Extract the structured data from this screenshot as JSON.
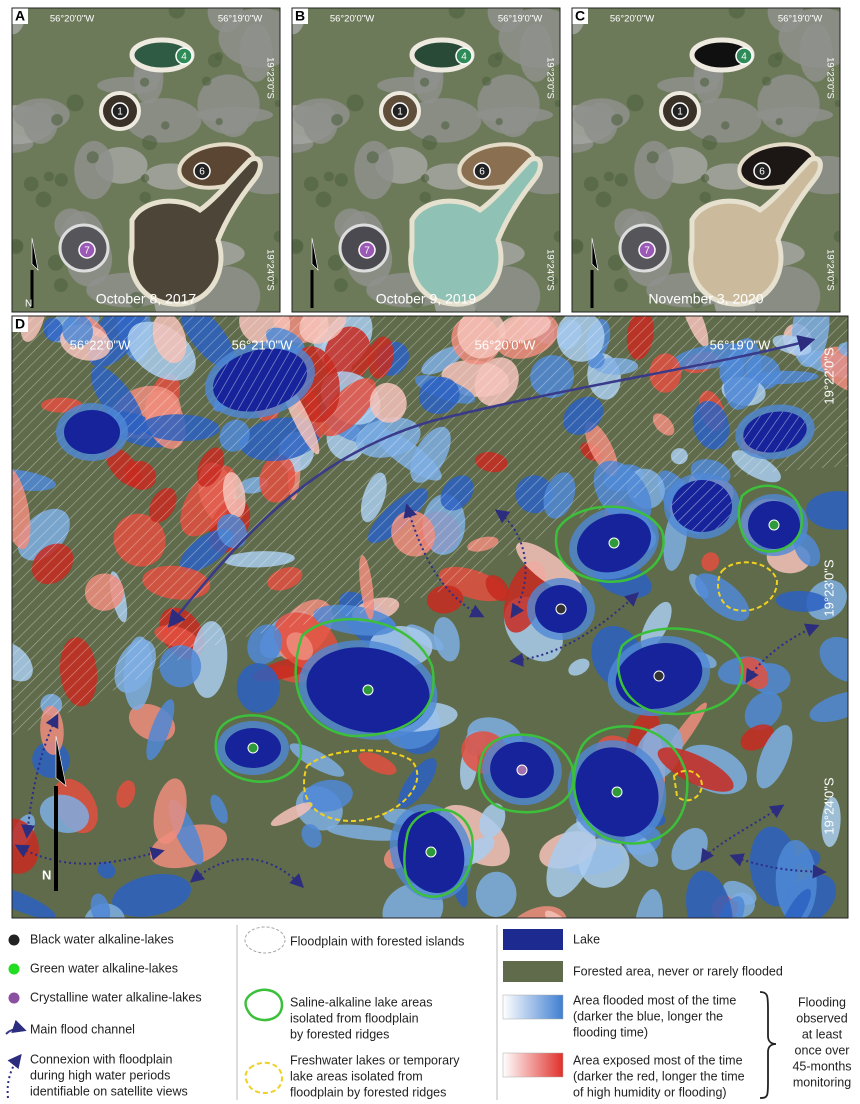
{
  "panels": [
    {
      "letter": "A",
      "date": "October 8, 2017",
      "lon": [
        "56°20'0\"W",
        "56°19'0\"W"
      ],
      "lat": [
        "19°23'0\"S",
        "19°24'0\"S"
      ],
      "lakes": [
        "4",
        "1",
        "6",
        "7"
      ],
      "north": "N"
    },
    {
      "letter": "B",
      "date": "October 9, 2019",
      "lon": [
        "56°20'0\"W",
        "56°19'0\"W"
      ],
      "lat": [
        "19°23'0\"S",
        "19°24'0\"S"
      ],
      "lakes": [
        "4",
        "1",
        "6",
        "7"
      ]
    },
    {
      "letter": "C",
      "date": "November 3, 2020",
      "lon": [
        "56°20'0\"W",
        "56°19'0\"W"
      ],
      "lat": [
        "19°23'0\"S",
        "19°24'0\"S"
      ],
      "lakes": [
        "4",
        "1",
        "6",
        "7"
      ]
    }
  ],
  "map": {
    "letter": "D",
    "lon": [
      "56°22'0\"W",
      "56°21'0\"W",
      "56°20'0\"W",
      "56°19'0\"W"
    ],
    "lat": [
      "19°22'0\"S",
      "19°23'0\"S",
      "19°24'0\"S"
    ],
    "north": "N"
  },
  "legend": {
    "lake_types": [
      "Black water alkaline-lakes",
      "Green water alkaline-lakes",
      "Crystalline water alkaline-lakes"
    ],
    "main_channel": "Main flood channel",
    "connexion": [
      "Connexion with floodplain",
      "during high water periods",
      "identifiable on satellite views"
    ],
    "floodplain": "Floodplain with forested islands",
    "saline": [
      "Saline-alkaline lake areas",
      "isolated from floodplain",
      "by forested ridges"
    ],
    "freshwater": [
      "Freshwater lakes or temporary",
      "lake areas isolated from",
      "floodplain by forested ridges"
    ],
    "lake": "Lake",
    "forested": "Forested area, never or rarely flooded",
    "flooded": [
      "Area flooded most of the time",
      "(darker the blue, longer the",
      "flooding time)"
    ],
    "exposed": [
      "Area exposed most of the time",
      "(darker the red, longer the time",
      "of high humidity or flooding)"
    ],
    "flooding_note": [
      "Flooding",
      "observed",
      "at least",
      "once over",
      "45-months",
      "monitoring"
    ]
  }
}
